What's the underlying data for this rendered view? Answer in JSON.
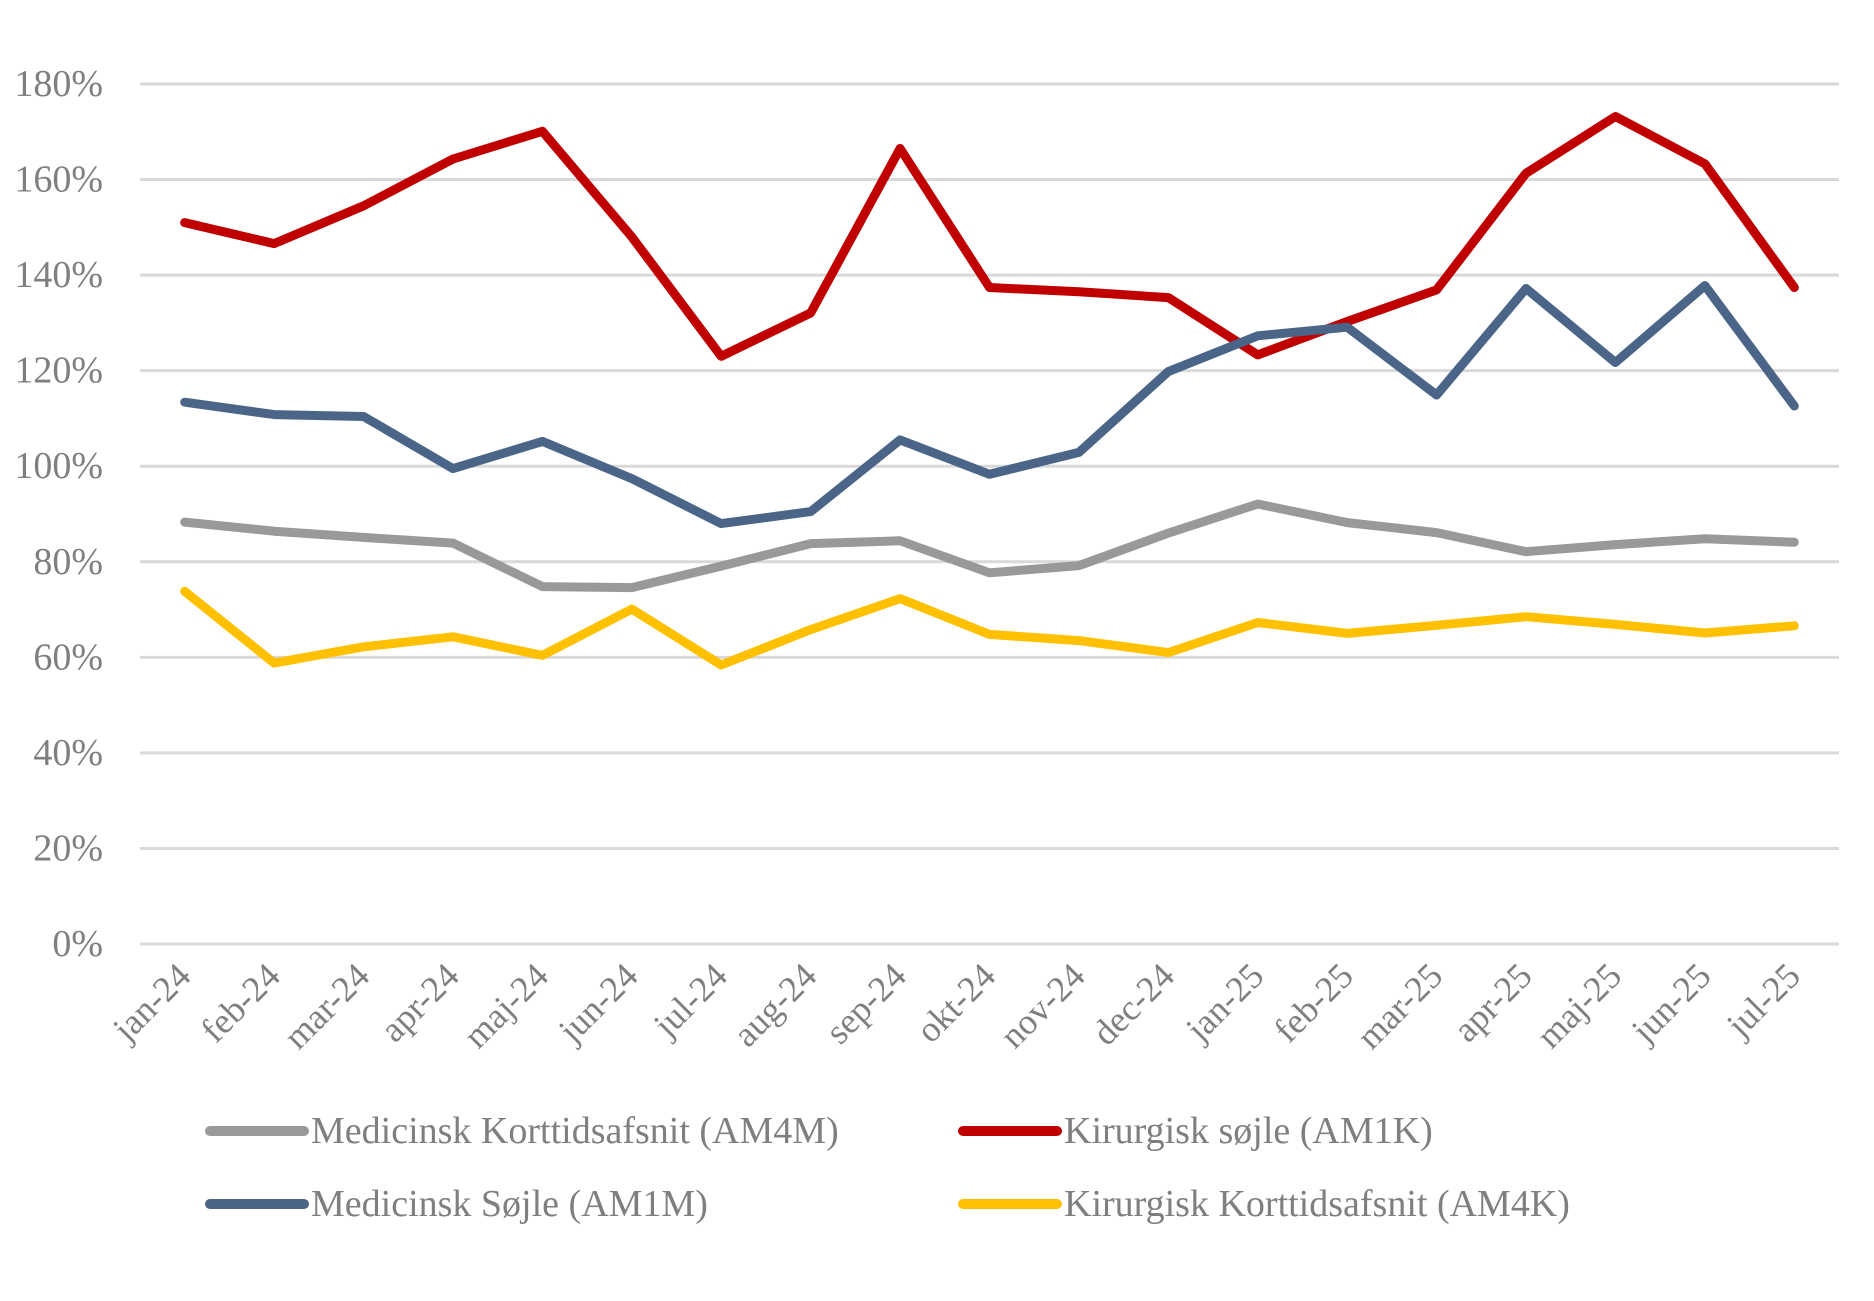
{
  "chart_data": {
    "type": "line",
    "title": "",
    "xlabel": "",
    "ylabel": "",
    "ylim": [
      0,
      180
    ],
    "y_ticks": [
      0,
      20,
      40,
      60,
      80,
      100,
      120,
      140,
      160,
      180
    ],
    "y_tick_labels": [
      "0%",
      "20%",
      "40%",
      "60%",
      "80%",
      "100%",
      "120%",
      "140%",
      "160%",
      "180%"
    ],
    "y_unit": "%",
    "grid": "horizontal",
    "legend_position": "bottom",
    "categories": [
      "jan-24",
      "feb-24",
      "mar-24",
      "apr-24",
      "maj-24",
      "jun-24",
      "jul-24",
      "aug-24",
      "sep-24",
      "okt-24",
      "nov-24",
      "dec-24",
      "jan-25",
      "feb-25",
      "mar-25",
      "apr-25",
      "maj-25",
      "jun-25",
      "jul-25"
    ],
    "series": [
      {
        "name": "Medicinsk Korttidsafsnit (AM4M)",
        "color": "#999999",
        "values": [
          88.3,
          86.4,
          85.1,
          83.9,
          74.8,
          74.6,
          79.1,
          83.8,
          84.4,
          77.7,
          79.2,
          86.0,
          92.1,
          88.2,
          86.1,
          82.1,
          83.6,
          84.8,
          84.1
        ]
      },
      {
        "name": "Kirurgisk søjle (AM1K)",
        "color": "#c00000",
        "values": [
          151.0,
          146.6,
          154.5,
          164.3,
          170.1,
          148.0,
          123.0,
          132.1,
          166.5,
          137.4,
          136.5,
          135.3,
          123.3,
          130.3,
          136.9,
          161.3,
          173.2,
          163.3,
          137.4
        ]
      },
      {
        "name": "Medicinsk Søjle (AM1M)",
        "color": "#4a6588",
        "values": [
          113.4,
          110.8,
          110.4,
          99.5,
          105.2,
          97.4,
          88.0,
          90.5,
          105.5,
          98.3,
          102.9,
          119.8,
          127.3,
          129.1,
          114.9,
          137.2,
          121.7,
          137.8,
          112.6
        ]
      },
      {
        "name": "Kirurgisk Korttidsafsnit (AM4K)",
        "color": "#ffc000",
        "values": [
          73.8,
          58.8,
          62.2,
          64.3,
          60.4,
          70.1,
          58.4,
          65.8,
          72.3,
          64.8,
          63.5,
          61.0,
          67.3,
          65.0,
          66.7,
          68.5,
          66.9,
          65.1,
          66.6
        ]
      }
    ],
    "legend": [
      {
        "label": "Medicinsk Korttidsafsnit (AM4M)",
        "series_index": 0
      },
      {
        "label": "Kirurgisk søjle (AM1K)",
        "series_index": 1
      },
      {
        "label": "Medicinsk Søjle (AM1M)",
        "series_index": 2
      },
      {
        "label": "Kirurgisk Korttidsafsnit (AM4K)",
        "series_index": 3
      }
    ]
  }
}
